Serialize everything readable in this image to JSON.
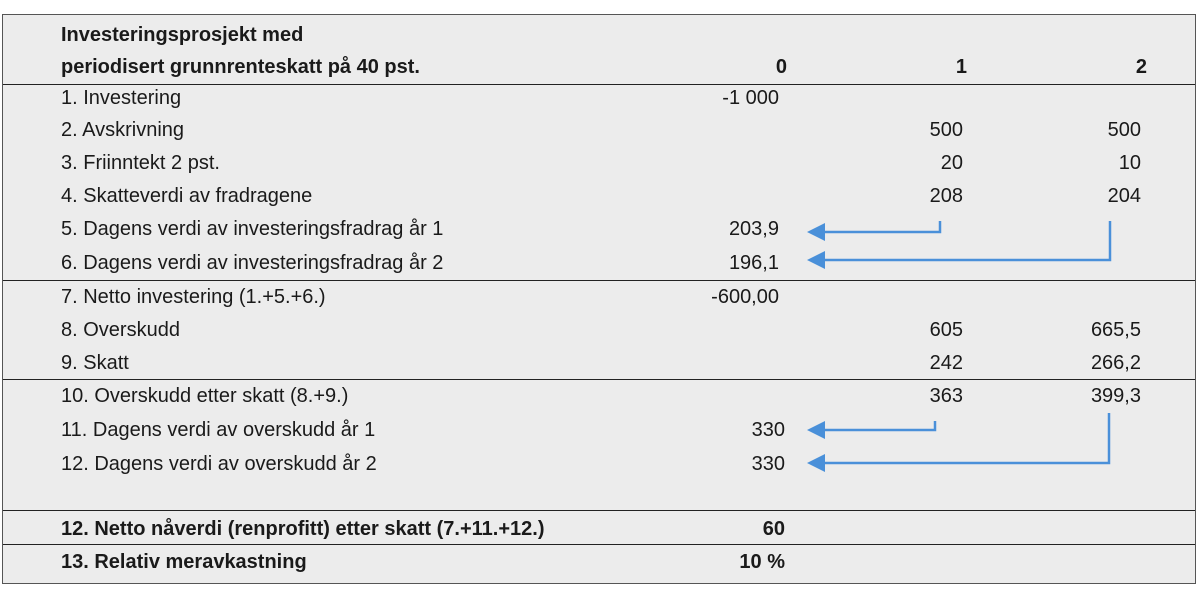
{
  "header": {
    "title_line1": "Investeringsprosjekt med",
    "title_line2": "periodisert grunnrenteskatt på 40 pst.",
    "col0": "0",
    "col1": "1",
    "col2": "2"
  },
  "rows": [
    {
      "label": "1. Investering",
      "c0": "-1 000",
      "c1": "",
      "c2": ""
    },
    {
      "label": "2. Avskrivning",
      "c0": "",
      "c1": "500",
      "c2": "500"
    },
    {
      "label": "3. Friinntekt 2 pst.",
      "c0": "",
      "c1": "20",
      "c2": "10"
    },
    {
      "label": "4. Skatteverdi av fradragene",
      "c0": "",
      "c1": "208",
      "c2": "204"
    },
    {
      "label": "5. Dagens verdi av investeringsfradrag år 1",
      "c0": "203,9",
      "c1": "",
      "c2": ""
    },
    {
      "label": "6. Dagens verdi av investeringsfradrag år 2",
      "c0": "196,1",
      "c1": "",
      "c2": ""
    },
    {
      "label": "7. Netto investering (1.+5.+6.)",
      "c0": "-600,00",
      "c1": "",
      "c2": ""
    },
    {
      "label": "8. Overskudd",
      "c0": "",
      "c1": "605",
      "c2": "665,5"
    },
    {
      "label": "9. Skatt",
      "c0": "",
      "c1": "242",
      "c2": "266,2"
    },
    {
      "label": "10. Overskudd etter skatt  (8.+9.)",
      "c0": "",
      "c1": "363",
      "c2": "399,3"
    },
    {
      "label": "11. Dagens verdi av overskudd år 1",
      "c0": "330",
      "c1": "",
      "c2": ""
    },
    {
      "label": "12. Dagens verdi av overskudd år 2",
      "c0": "330",
      "c1": "",
      "c2": ""
    }
  ],
  "totals": [
    {
      "label": "12. Netto nåverdi (renprofitt) etter skatt (7.+11.+12.)",
      "c0": "60"
    },
    {
      "label": "13. Relativ meravkastning",
      "c0": "10 %"
    }
  ],
  "colors": {
    "arrow": "#4a90d9",
    "panel": "#ececec",
    "rule": "#222222"
  }
}
